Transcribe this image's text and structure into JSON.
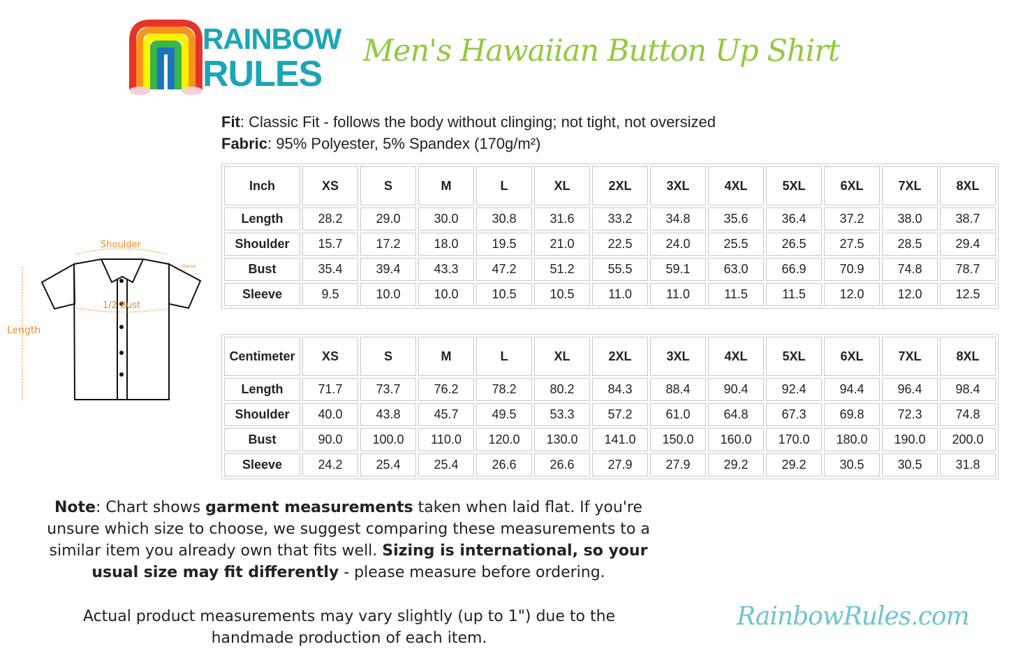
{
  "logo": {
    "line1": "RAINBOW",
    "line2": "RULES"
  },
  "title": "Men's Hawaiian Button Up Shirt",
  "specs": {
    "fit_label": "Fit",
    "fit_text": ": Classic Fit - follows the body without clinging; not tight, not oversized",
    "fabric_label": "Fabric",
    "fabric_text": ": 95% Polyester, 5% Spandex (170g/m²)"
  },
  "diagram": {
    "shoulder": "Shoulder",
    "sleeve": "Sleeve",
    "bust": "1/2 Bust",
    "length": "Length",
    "accent_color": "#f08a24"
  },
  "tables": [
    {
      "unit": "Inch",
      "sizes": [
        "XS",
        "S",
        "M",
        "L",
        "XL",
        "2XL",
        "3XL",
        "4XL",
        "5XL",
        "6XL",
        "7XL",
        "8XL"
      ],
      "rows": [
        {
          "label": "Length",
          "values": [
            "28.2",
            "29.0",
            "30.0",
            "30.8",
            "31.6",
            "33.2",
            "34.8",
            "35.6",
            "36.4",
            "37.2",
            "38.0",
            "38.7"
          ]
        },
        {
          "label": "Shoulder",
          "values": [
            "15.7",
            "17.2",
            "18.0",
            "19.5",
            "21.0",
            "22.5",
            "24.0",
            "25.5",
            "26.5",
            "27.5",
            "28.5",
            "29.4"
          ]
        },
        {
          "label": "Bust",
          "values": [
            "35.4",
            "39.4",
            "43.3",
            "47.2",
            "51.2",
            "55.5",
            "59.1",
            "63.0",
            "66.9",
            "70.9",
            "74.8",
            "78.7"
          ]
        },
        {
          "label": "Sleeve",
          "values": [
            "9.5",
            "10.0",
            "10.0",
            "10.5",
            "10.5",
            "11.0",
            "11.0",
            "11.5",
            "11.5",
            "12.0",
            "12.0",
            "12.5"
          ]
        }
      ]
    },
    {
      "unit": "Centimeter",
      "sizes": [
        "XS",
        "S",
        "M",
        "L",
        "XL",
        "2XL",
        "3XL",
        "4XL",
        "5XL",
        "6XL",
        "7XL",
        "8XL"
      ],
      "rows": [
        {
          "label": "Length",
          "values": [
            "71.7",
            "73.7",
            "76.2",
            "78.2",
            "80.2",
            "84.3",
            "88.4",
            "90.4",
            "92.4",
            "94.4",
            "96.4",
            "98.4"
          ]
        },
        {
          "label": "Shoulder",
          "values": [
            "40.0",
            "43.8",
            "45.7",
            "49.5",
            "53.3",
            "57.2",
            "61.0",
            "64.8",
            "67.3",
            "69.8",
            "72.3",
            "74.8"
          ]
        },
        {
          "label": "Bust",
          "values": [
            "90.0",
            "100.0",
            "110.0",
            "120.0",
            "130.0",
            "141.0",
            "150.0",
            "160.0",
            "170.0",
            "180.0",
            "190.0",
            "200.0"
          ]
        },
        {
          "label": "Sleeve",
          "values": [
            "24.2",
            "25.4",
            "25.4",
            "26.6",
            "26.6",
            "27.9",
            "27.9",
            "29.2",
            "29.2",
            "30.5",
            "30.5",
            "31.8"
          ]
        }
      ]
    }
  ],
  "note": {
    "label": "Note",
    "t1": ": Chart shows ",
    "b1": "garment measurements",
    "t2": " taken when laid flat. If you're unsure which size to choose, we suggest comparing these measurements to a similar item you already own that fits well. ",
    "b2": "Sizing is international, so your usual size may fit differently",
    "t3": " - please measure before ordering.",
    "disclaimer": "Actual product measurements may vary slightly (up to 1\") due to the handmade production of each item."
  },
  "brand": "RainbowRules.com",
  "colors": {
    "title_green": "#93c83e",
    "brand_teal": "#6cc5cf",
    "logo_teal": "#1aa6b7"
  }
}
